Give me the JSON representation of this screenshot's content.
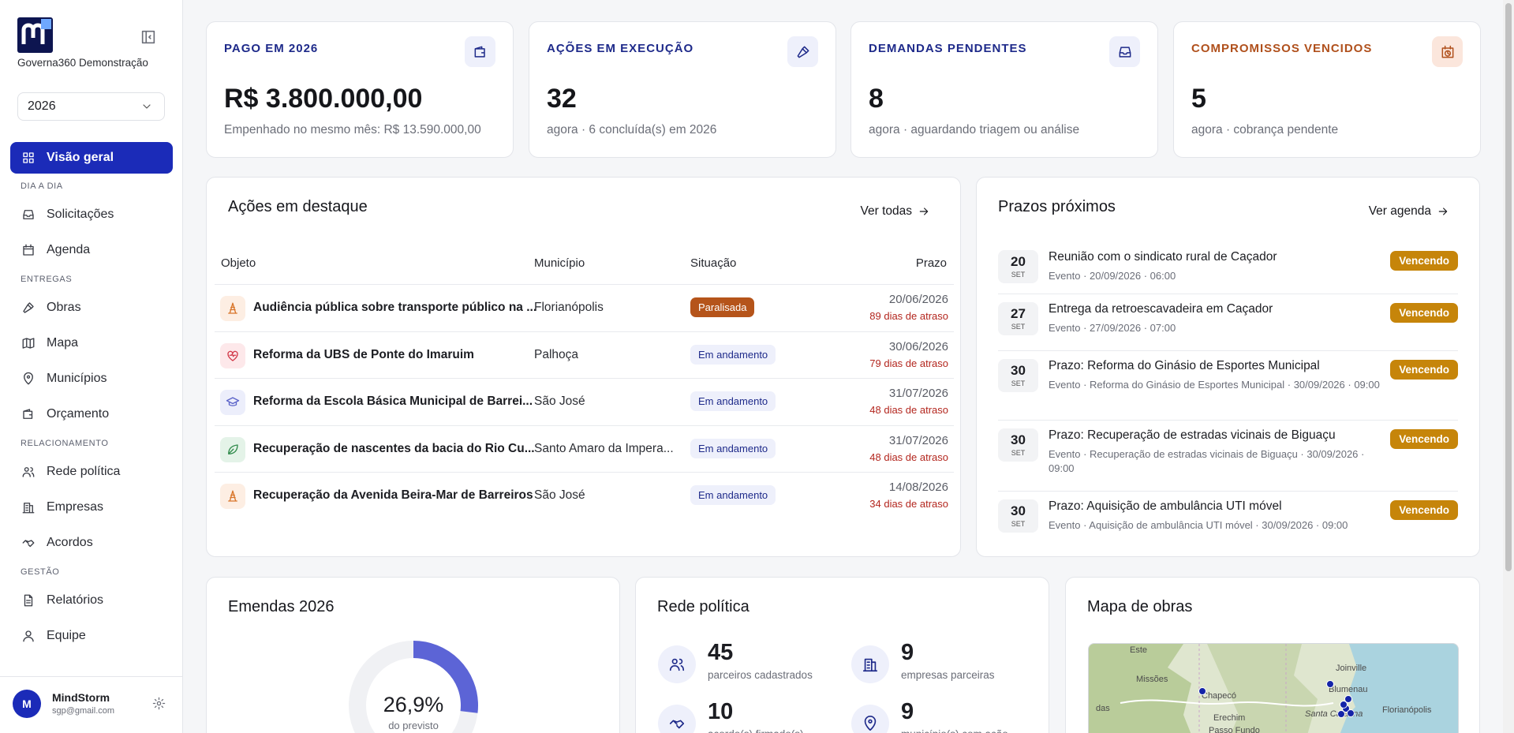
{
  "sidebar": {
    "org_name": "Governa360 Demonstração",
    "year": "2026",
    "home": "Visão geral",
    "groups": [
      {
        "title": "DIA A DIA",
        "items": [
          "Solicitações",
          "Agenda"
        ]
      },
      {
        "title": "ENTREGAS",
        "items": [
          "Obras",
          "Mapa",
          "Municípios",
          "Orçamento"
        ]
      },
      {
        "title": "RELACIONAMENTO",
        "items": [
          "Rede política",
          "Empresas",
          "Acordos"
        ]
      },
      {
        "title": "GESTÃO",
        "items": [
          "Relatórios",
          "Equipe"
        ]
      }
    ],
    "user": {
      "initial": "M",
      "name": "MindStorm",
      "email": "sgp@gmail.com"
    }
  },
  "stats": [
    {
      "title": "PAGO EM 2026",
      "value": "R$ 3.800.000,00",
      "subtitle": "Empenhado no mesmo mês: R$ 13.590.000,00"
    },
    {
      "title": "AÇÕES EM EXECUÇÃO",
      "value": "32",
      "subtitle": "agora · 6 concluída(s) em 2026"
    },
    {
      "title": "DEMANDAS PENDENTES",
      "value": "8",
      "subtitle": "agora · aguardando triagem ou análise"
    },
    {
      "title": "COMPROMISSOS VENCIDOS",
      "value": "5",
      "subtitle": "agora · cobrança pendente"
    }
  ],
  "actions": {
    "title": "Ações em destaque",
    "link": "Ver todas",
    "columns": [
      "Objeto",
      "Município",
      "Situação",
      "Prazo"
    ],
    "rows": [
      {
        "objeto": "Audiência pública sobre transporte público na ...",
        "municipio": "Florianópolis",
        "situacao": "Paralisada",
        "prazo": "20/06/2026",
        "atraso": "89 dias de atraso"
      },
      {
        "objeto": "Reforma da UBS de Ponte do Imaruim",
        "municipio": "Palhoça",
        "situacao": "Em andamento",
        "prazo": "30/06/2026",
        "atraso": "79 dias de atraso"
      },
      {
        "objeto": "Reforma da Escola Básica Municipal de Barrei...",
        "municipio": "São José",
        "situacao": "Em andamento",
        "prazo": "31/07/2026",
        "atraso": "48 dias de atraso"
      },
      {
        "objeto": "Recuperação de nascentes da bacia do Rio Cu...",
        "municipio": "Santo Amaro da Impera...",
        "situacao": "Em andamento",
        "prazo": "31/07/2026",
        "atraso": "48 dias de atraso"
      },
      {
        "objeto": "Recuperação da Avenida Beira-Mar de Barreiros",
        "municipio": "São José",
        "situacao": "Em andamento",
        "prazo": "14/08/2026",
        "atraso": "34 dias de atraso"
      }
    ]
  },
  "deadlines": {
    "title": "Prazos próximos",
    "link": "Ver agenda",
    "items": [
      {
        "day": "20",
        "month": "SET",
        "title": "Reunião com o sindicato rural de Caçador",
        "detail": "Evento · 20/09/2026 · 06:00",
        "badge": "Vencendo"
      },
      {
        "day": "27",
        "month": "SET",
        "title": "Entrega da retroescavadeira em Caçador",
        "detail": "Evento · 27/09/2026 · 07:00",
        "badge": "Vencendo"
      },
      {
        "day": "30",
        "month": "SET",
        "title": "Prazo: Reforma do Ginásio de Esportes Municipal",
        "detail": "Evento · Reforma do Ginásio de Esportes Municipal · 30/09/2026 · 09:00",
        "badge": "Vencendo"
      },
      {
        "day": "30",
        "month": "SET",
        "title": "Prazo: Recuperação de estradas vicinais de Biguaçu",
        "detail": "Evento · Recuperação de estradas vicinais de Biguaçu · 30/09/2026 · 09:00",
        "badge": "Vencendo"
      },
      {
        "day": "30",
        "month": "SET",
        "title": "Prazo: Aquisição de ambulância UTI móvel",
        "detail": "Evento · Aquisição de ambulância UTI móvel · 30/09/2026 · 09:00",
        "badge": "Vencendo"
      }
    ]
  },
  "emendas": {
    "title": "Emendas 2026",
    "percent": 26.9,
    "percent_label": "26,9%",
    "caption": "do previsto"
  },
  "rede": {
    "title": "Rede política",
    "stats": [
      {
        "value": "45",
        "label": "parceiros cadastrados"
      },
      {
        "value": "9",
        "label": "empresas parceiras"
      },
      {
        "value": "10",
        "label": "acordo(s) firmado(s)"
      },
      {
        "value": "9",
        "label": "município(s) com ação"
      }
    ]
  },
  "map": {
    "title": "Mapa de obras",
    "labels": [
      "Este",
      "Missões",
      "Chapecó",
      "Erechim",
      "Passo Fundo",
      "Joinville",
      "Blumenau",
      "Santa Catarina",
      "Florianópolis",
      "das"
    ]
  }
}
